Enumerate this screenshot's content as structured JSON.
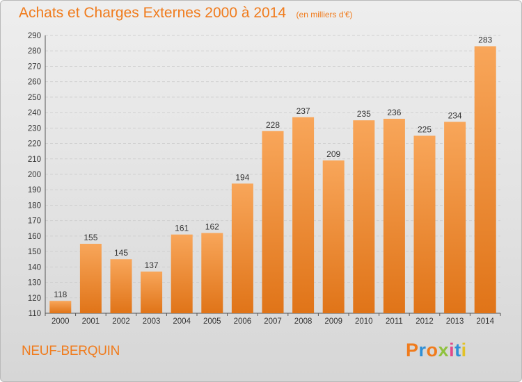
{
  "header": {
    "title": "Achats et Charges Externes 2000 à 2014",
    "subtitle": "(en milliers d'€)"
  },
  "footer": {
    "town": "NEUF-BERQUIN",
    "brand": "Proxiti"
  },
  "colors": {
    "accent": "#f07b1c",
    "bar_top": "#f8a65a",
    "bar_bottom": "#e07418",
    "grid": "#cfcfcf",
    "brand_letters": [
      "#f07b1c",
      "#2e8fd6",
      "#f07b1c",
      "#8fc23e",
      "#e04a8a",
      "#2e8fd6",
      "#e2c227"
    ]
  },
  "chart_data": {
    "type": "bar",
    "title": "Achats et Charges Externes 2000 à 2014",
    "subtitle": "(en milliers d'€)",
    "xlabel": "",
    "ylabel": "",
    "categories": [
      "2000",
      "2001",
      "2002",
      "2003",
      "2004",
      "2005",
      "2006",
      "2007",
      "2008",
      "2009",
      "2010",
      "2011",
      "2012",
      "2013",
      "2014"
    ],
    "values": [
      118,
      155,
      145,
      137,
      161,
      162,
      194,
      228,
      237,
      209,
      235,
      236,
      225,
      234,
      283
    ],
    "ylim": [
      110,
      290
    ],
    "yticks": [
      110,
      120,
      130,
      140,
      150,
      160,
      170,
      180,
      190,
      200,
      210,
      220,
      230,
      240,
      250,
      260,
      270,
      280,
      290
    ],
    "grid": true,
    "legend": "none",
    "data_labels": true
  }
}
